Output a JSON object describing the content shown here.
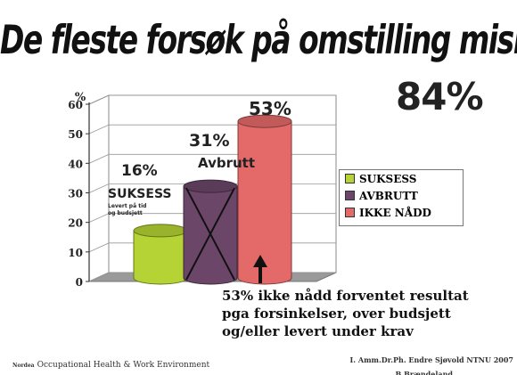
{
  "title": "De fleste forsøk på omstilling mislykkes!",
  "headline_value": "84%",
  "chart_data": {
    "type": "bar",
    "categories": [
      "SUKSESS",
      "AVBRUTT",
      "IKKE NÅDD"
    ],
    "values": [
      16,
      31,
      53
    ],
    "value_labels": [
      "16%",
      "31%",
      "53%"
    ],
    "ylim": [
      0,
      60
    ],
    "yticks": [
      0,
      10,
      20,
      30,
      40,
      50,
      60
    ],
    "ylabel": "%",
    "grid": true,
    "legend_position": "right",
    "colors": [
      "#b5d334",
      "#6b4668",
      "#e46a6a"
    ],
    "annotations": {
      "success_label": "SUKSESS",
      "success_sub1": "Levert på tid",
      "success_sub2": "og budsjett",
      "aborted_label": "Avbrutt"
    }
  },
  "legend": {
    "items": [
      {
        "label": "SUKSESS",
        "color": "#b5d334"
      },
      {
        "label": "AVBRUTT",
        "color": "#6b4668"
      },
      {
        "label": "IKKE NÅDD",
        "color": "#e46a6a"
      }
    ]
  },
  "note_lines": [
    "53% ikke nådd forventet resultat",
    "pga forsinkelser, over budsjett",
    "og/eller levert under krav"
  ],
  "footer": {
    "org_small": "Nordea",
    "org_text": "Occupational Health & Work Environment",
    "author": "I. Amm.Dr.Ph. Endre Sjøvold NTNU 2007",
    "author2": "B.Brændeland"
  }
}
